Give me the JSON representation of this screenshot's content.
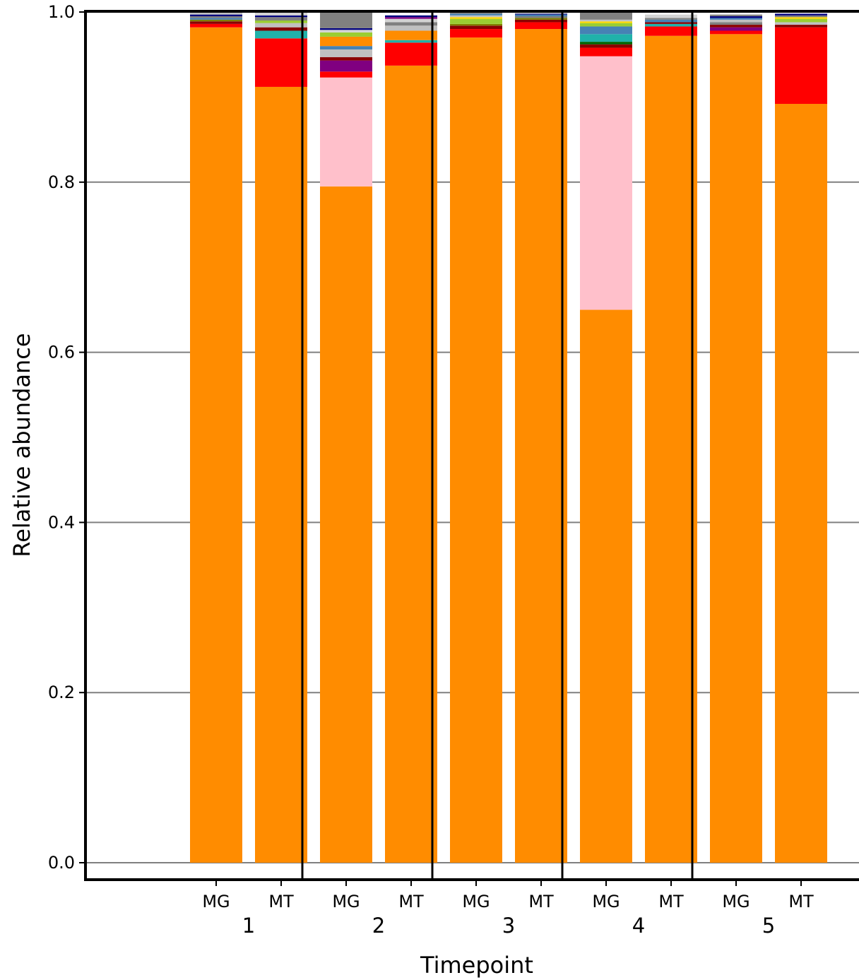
{
  "chart_data": {
    "type": "bar",
    "stacked": true,
    "title": "",
    "xlabel": "Timepoint",
    "ylabel": "Relative abundance",
    "ylim": [
      0.0,
      1.0
    ],
    "yticks": [
      "0.0",
      "0.2",
      "0.4",
      "0.6",
      "0.8",
      "1.0"
    ],
    "ytick_values": [
      0.0,
      0.2,
      0.4,
      0.6,
      0.8,
      1.0
    ],
    "grid": "horizontal",
    "legend": "none",
    "groups": [
      "1",
      "2",
      "3",
      "4",
      "5"
    ],
    "sample_types": [
      "MG",
      "MT"
    ],
    "colors": {
      "orange": "#ff8c00",
      "pink": "#ffc0cb",
      "red": "#ff0000",
      "teal": "#20b2aa",
      "purple": "#800080",
      "gray": "#808080",
      "silver": "#c0c0c0",
      "steelblue": "#4682b4",
      "yellowgreen": "#9acd32",
      "darkred": "#8b0000",
      "navy": "#000080",
      "yellow": "#ffd700",
      "olive": "#808000",
      "lightgray": "#d3d3d3",
      "darkgreen": "#006400"
    },
    "bars": [
      {
        "group": "1",
        "sample": "MG",
        "segments": [
          {
            "color": "orange",
            "value": 0.982
          },
          {
            "color": "red",
            "value": 0.004
          },
          {
            "color": "darkred",
            "value": 0.003
          },
          {
            "color": "olive",
            "value": 0.002
          },
          {
            "color": "steelblue",
            "value": 0.002
          },
          {
            "color": "gray",
            "value": 0.002
          },
          {
            "color": "navy",
            "value": 0.002
          },
          {
            "color": "silver",
            "value": 0.003
          }
        ]
      },
      {
        "group": "1",
        "sample": "MT",
        "segments": [
          {
            "color": "orange",
            "value": 0.912
          },
          {
            "color": "red",
            "value": 0.057
          },
          {
            "color": "teal",
            "value": 0.009
          },
          {
            "color": "darkred",
            "value": 0.004
          },
          {
            "color": "silver",
            "value": 0.005
          },
          {
            "color": "yellowgreen",
            "value": 0.003
          },
          {
            "color": "gray",
            "value": 0.004
          },
          {
            "color": "navy",
            "value": 0.002
          },
          {
            "color": "lightgray",
            "value": 0.004
          }
        ]
      },
      {
        "group": "2",
        "sample": "MG",
        "segments": [
          {
            "color": "orange",
            "value": 0.795
          },
          {
            "color": "pink",
            "value": 0.128
          },
          {
            "color": "red",
            "value": 0.007
          },
          {
            "color": "purple",
            "value": 0.013
          },
          {
            "color": "darkred",
            "value": 0.004
          },
          {
            "color": "silver",
            "value": 0.009
          },
          {
            "color": "steelblue",
            "value": 0.004
          },
          {
            "color": "orange",
            "value": 0.011
          },
          {
            "color": "yellowgreen",
            "value": 0.005
          },
          {
            "color": "lightgray",
            "value": 0.003
          },
          {
            "color": "navy",
            "value": 0.002
          },
          {
            "color": "gray",
            "value": 0.019
          }
        ]
      },
      {
        "group": "2",
        "sample": "MT",
        "segments": [
          {
            "color": "orange",
            "value": 0.937
          },
          {
            "color": "red",
            "value": 0.027
          },
          {
            "color": "teal",
            "value": 0.003
          },
          {
            "color": "orange",
            "value": 0.011
          },
          {
            "color": "silver",
            "value": 0.006
          },
          {
            "color": "gray",
            "value": 0.004
          },
          {
            "color": "lightgray",
            "value": 0.004
          },
          {
            "color": "purple",
            "value": 0.002
          },
          {
            "color": "navy",
            "value": 0.002
          }
        ]
      },
      {
        "group": "3",
        "sample": "MG",
        "segments": [
          {
            "color": "orange",
            "value": 0.97
          },
          {
            "color": "red",
            "value": 0.01
          },
          {
            "color": "darkred",
            "value": 0.004
          },
          {
            "color": "olive",
            "value": 0.002
          },
          {
            "color": "yellowgreen",
            "value": 0.006
          },
          {
            "color": "yellow",
            "value": 0.002
          },
          {
            "color": "silver",
            "value": 0.002
          },
          {
            "color": "steelblue",
            "value": 0.002
          },
          {
            "color": "gray",
            "value": 0.002
          }
        ]
      },
      {
        "group": "3",
        "sample": "MT",
        "segments": [
          {
            "color": "orange",
            "value": 0.98
          },
          {
            "color": "red",
            "value": 0.008
          },
          {
            "color": "darkred",
            "value": 0.003
          },
          {
            "color": "olive",
            "value": 0.002
          },
          {
            "color": "gray",
            "value": 0.002
          },
          {
            "color": "steelblue",
            "value": 0.002
          },
          {
            "color": "navy",
            "value": 0.001
          },
          {
            "color": "lightgray",
            "value": 0.002
          }
        ]
      },
      {
        "group": "4",
        "sample": "MG",
        "segments": [
          {
            "color": "orange",
            "value": 0.65
          },
          {
            "color": "pink",
            "value": 0.298
          },
          {
            "color": "red",
            "value": 0.01
          },
          {
            "color": "darkred",
            "value": 0.004
          },
          {
            "color": "darkgreen",
            "value": 0.003
          },
          {
            "color": "teal",
            "value": 0.009
          },
          {
            "color": "steelblue",
            "value": 0.009
          },
          {
            "color": "yellowgreen",
            "value": 0.004
          },
          {
            "color": "yellow",
            "value": 0.002
          },
          {
            "color": "silver",
            "value": 0.002
          },
          {
            "color": "gray",
            "value": 0.009
          }
        ]
      },
      {
        "group": "4",
        "sample": "MT",
        "segments": [
          {
            "color": "orange",
            "value": 0.972
          },
          {
            "color": "red",
            "value": 0.011
          },
          {
            "color": "teal",
            "value": 0.003
          },
          {
            "color": "darkred",
            "value": 0.002
          },
          {
            "color": "steelblue",
            "value": 0.003
          },
          {
            "color": "gray",
            "value": 0.002
          },
          {
            "color": "lightgray",
            "value": 0.004
          }
        ]
      },
      {
        "group": "5",
        "sample": "MG",
        "segments": [
          {
            "color": "orange",
            "value": 0.974
          },
          {
            "color": "red",
            "value": 0.004
          },
          {
            "color": "purple",
            "value": 0.004
          },
          {
            "color": "darkred",
            "value": 0.003
          },
          {
            "color": "gray",
            "value": 0.003
          },
          {
            "color": "silver",
            "value": 0.003
          },
          {
            "color": "steelblue",
            "value": 0.002
          },
          {
            "color": "navy",
            "value": 0.002
          },
          {
            "color": "gray",
            "value": 0.002
          }
        ]
      },
      {
        "group": "5",
        "sample": "MT",
        "segments": [
          {
            "color": "orange",
            "value": 0.892
          },
          {
            "color": "red",
            "value": 0.09
          },
          {
            "color": "darkred",
            "value": 0.003
          },
          {
            "color": "silver",
            "value": 0.003
          },
          {
            "color": "yellowgreen",
            "value": 0.004
          },
          {
            "color": "yellow",
            "value": 0.002
          },
          {
            "color": "gray",
            "value": 0.002
          },
          {
            "color": "navy",
            "value": 0.002
          }
        ]
      }
    ]
  }
}
